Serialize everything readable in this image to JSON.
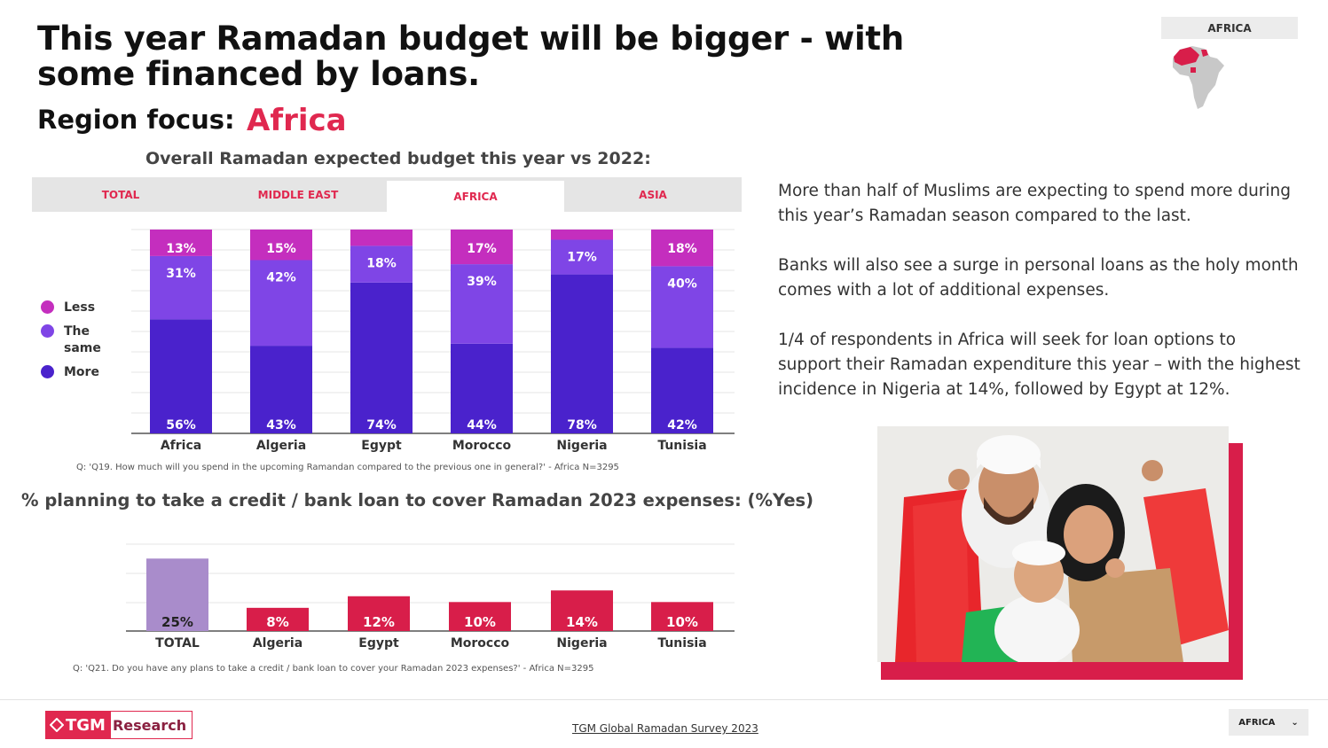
{
  "header": {
    "title": "This year Ramadan budget will be bigger - with some financed by loans.",
    "region_label": "Region focus:",
    "region_value": "Africa",
    "map_label": "AFRICA"
  },
  "chart1": {
    "title": "Overall Ramadan expected budget this year vs 2022:",
    "tabs": [
      "TOTAL",
      "MIDDLE EAST",
      "AFRICA",
      "ASIA"
    ],
    "active_tab": "AFRICA",
    "legend": {
      "less": "Less",
      "same": "The same",
      "more": "More"
    },
    "footnote": "Q: 'Q19. How much will you spend in the upcoming Ramandan compared to the previous one in general?' - Africa N=3295"
  },
  "chart2": {
    "title": "% planning to take a credit / bank loan to cover Ramadan 2023 expenses: (%Yes)",
    "footnote": "Q: 'Q21. Do you have any plans to take a credit / bank loan to cover your Ramadan 2023 expenses?' - Africa N=3295"
  },
  "chart_data": [
    {
      "type": "bar",
      "stacked": true,
      "title": "Overall Ramadan expected budget this year vs 2022:",
      "categories": [
        "Africa",
        "Algeria",
        "Egypt",
        "Morocco",
        "Nigeria",
        "Tunisia"
      ],
      "series": [
        {
          "name": "More",
          "values": [
            56,
            43,
            74,
            44,
            78,
            42
          ],
          "labels": [
            "56%",
            "43%",
            "74%",
            "44%",
            "78%",
            "42%"
          ],
          "color": "#4a22cc"
        },
        {
          "name": "The same",
          "values": [
            31,
            42,
            18,
            39,
            17,
            40
          ],
          "labels": [
            "31%",
            "42%",
            "18%",
            "39%",
            "17%",
            "40%"
          ],
          "color": "#7f45e6"
        },
        {
          "name": "Less",
          "values": [
            13,
            15,
            8,
            17,
            5,
            18
          ],
          "labels": [
            "13%",
            "15%",
            "",
            "17%",
            "",
            "18%"
          ],
          "color": "#c42ebe"
        }
      ],
      "ylim": [
        0,
        100
      ],
      "legend_position": "left",
      "grid": true
    },
    {
      "type": "bar",
      "title": "% planning to take a credit / bank loan to cover Ramadan 2023 expenses: (%Yes)",
      "categories": [
        "TOTAL",
        "Algeria",
        "Egypt",
        "Morocco",
        "Nigeria",
        "Tunisia"
      ],
      "values": [
        25,
        8,
        12,
        10,
        14,
        10
      ],
      "labels": [
        "25%",
        "8%",
        "12%",
        "10%",
        "14%",
        "10%"
      ],
      "colors": [
        "#a98ccb",
        "#d81e4a",
        "#d81e4a",
        "#d81e4a",
        "#d81e4a",
        "#d81e4a"
      ],
      "ylim": [
        0,
        30
      ],
      "grid": true
    }
  ],
  "description": {
    "p1": "More than half of Muslims are expecting to spend more during this year’s Ramadan season compared to the last.",
    "p2": "Banks will also see a surge in personal loans as the holy month comes with a lot of additional expenses.",
    "p3": "1/4 of respondents in Africa will seek for loan options to support their Ramadan expenditure this year – with the highest incidence in Nigeria at 14%, followed by Egypt at 12%."
  },
  "footer": {
    "logo_tgm": "TGM",
    "logo_rest": "Research",
    "survey_link": "TGM Global Ramadan Survey 2023",
    "region_select": "AFRICA"
  }
}
